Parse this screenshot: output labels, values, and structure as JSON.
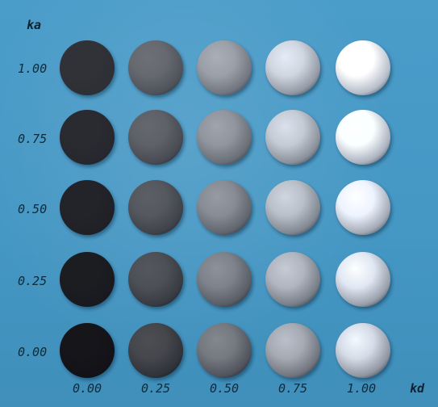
{
  "figure": {
    "ka_title": "ka",
    "kd_title": "kd",
    "row_labels": [
      "1.00",
      "0.75",
      "0.50",
      "0.25",
      "0.00"
    ],
    "col_labels": [
      "0.00",
      "0.25",
      "0.50",
      "0.75",
      "1.00"
    ],
    "ka_values": [
      1.0,
      0.75,
      0.5,
      0.25,
      0.0
    ],
    "kd_values": [
      0.0,
      0.25,
      0.5,
      0.75,
      1.0
    ],
    "background_color": "#4597c4",
    "label_color": "#0e2a3a"
  }
}
